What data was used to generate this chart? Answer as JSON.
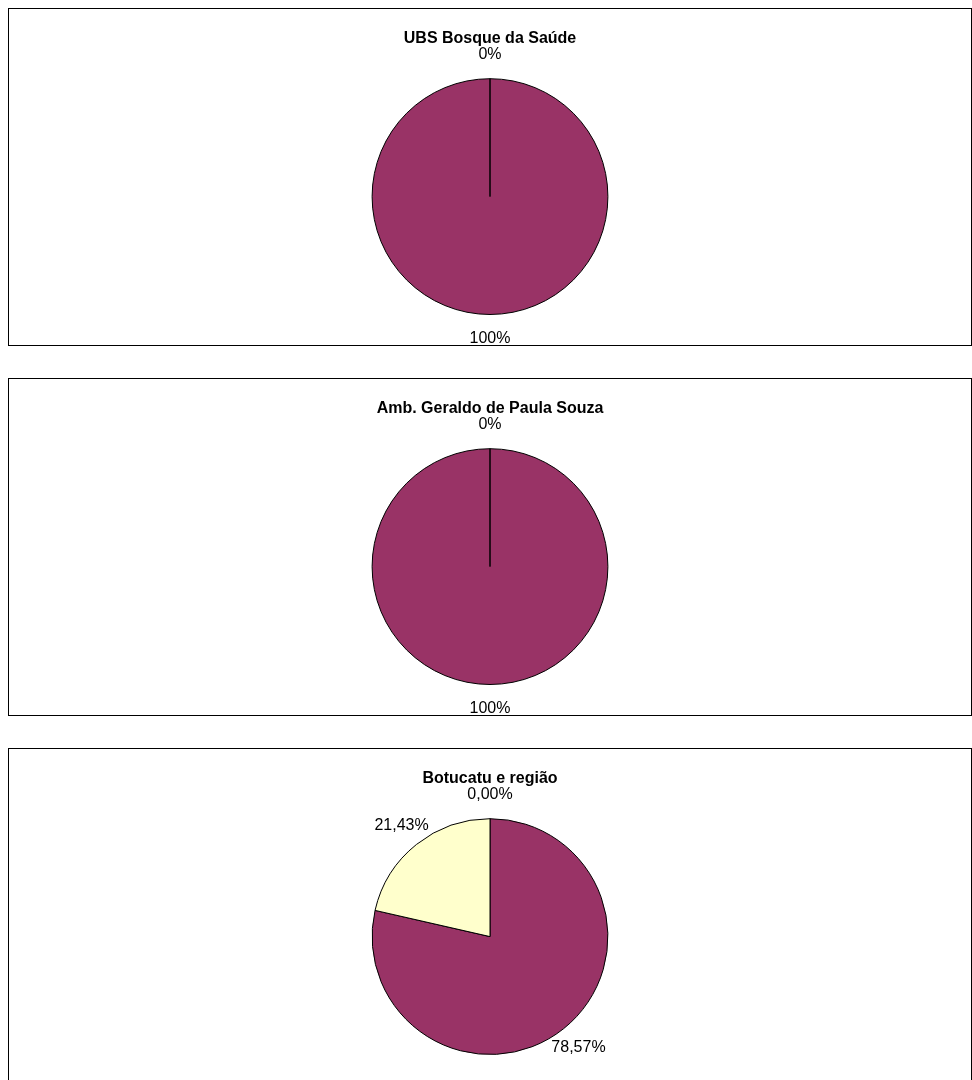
{
  "chart_data": [
    {
      "type": "pie",
      "title": "UBS Bosque da Saúde",
      "categories": [
        null,
        null
      ],
      "values": [
        100,
        0
      ],
      "colors": [
        "#993366",
        "#ffffcc"
      ],
      "value_labels": [
        "100%",
        "0%"
      ],
      "legend": false
    },
    {
      "type": "pie",
      "title": "Amb. Geraldo de Paula Souza",
      "categories": [
        null,
        null
      ],
      "values": [
        100,
        0
      ],
      "colors": [
        "#993366",
        "#ffffcc"
      ],
      "value_labels": [
        "100%",
        "0%"
      ],
      "legend": false
    },
    {
      "type": "pie",
      "title": "Botucatu e região",
      "categories": [
        null,
        null,
        null
      ],
      "values": [
        78.57,
        21.43,
        0
      ],
      "colors": [
        "#993366",
        "#ffffcc",
        "#ccffff"
      ],
      "value_labels": [
        "78,57%",
        "21,43%",
        "0,00%"
      ],
      "legend": false
    }
  ]
}
